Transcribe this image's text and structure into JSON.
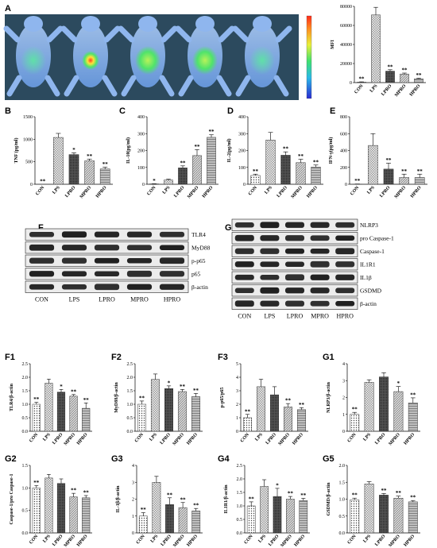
{
  "figure": {
    "panel_a": {
      "letter": "A",
      "colorbar_labels": [
        "",
        "",
        "",
        "",
        "",
        "",
        "",
        ""
      ],
      "colors": {
        "background": "#2c4a5e",
        "body": "#7bb1ee",
        "hot": "#ff3d1f",
        "warm": "#ffe23a",
        "mid": "#4fe36b"
      }
    },
    "western_f": {
      "letter": "F",
      "bands": [
        "TLR4",
        "MyD88",
        "p-p65",
        "p65",
        "β-actin"
      ],
      "lanes": [
        "CON",
        "LPS",
        "LPRO",
        "MPRO",
        "HPRO"
      ]
    },
    "western_g": {
      "letter": "G",
      "bands": [
        "NLRP3",
        "pro Caspase-1",
        "Caspase-1",
        "IL1R1",
        "IL1β",
        "GSDMD",
        "β-actin"
      ],
      "lanes": [
        "CON",
        "LPS",
        "LPRO",
        "MPRO",
        "HPRO"
      ]
    }
  },
  "chart_data": [
    {
      "id": "mfi",
      "type": "bar",
      "letter": "",
      "categories": [
        "CON",
        "LPS",
        "LPRO",
        "MPRO",
        "HPRO"
      ],
      "values": [
        500,
        71000,
        12000,
        9000,
        4000
      ],
      "errors": [
        300,
        8000,
        1500,
        1000,
        700
      ],
      "ylabel": "MFI",
      "ylim": [
        0,
        80000
      ],
      "yticks": [
        0,
        20000,
        40000,
        60000,
        80000
      ],
      "yticklabels": [
        "0",
        "20000",
        "40000",
        "60000",
        "80000"
      ],
      "stars": [
        "**",
        "",
        "**",
        "**",
        "**"
      ]
    },
    {
      "id": "B",
      "type": "bar",
      "letter": "B",
      "categories": [
        "CON",
        "LPS",
        "LPRO",
        "MPRO",
        "HPRO"
      ],
      "values": [
        0,
        1040,
        660,
        520,
        340
      ],
      "errors": [
        0,
        90,
        40,
        40,
        40
      ],
      "ylabel": "TNF (pg/ml)",
      "ylim": [
        0,
        1500
      ],
      "yticks": [
        0,
        500,
        1000,
        1500
      ],
      "yticklabels": [
        "0",
        "500",
        "1000",
        "1500"
      ],
      "stars": [
        "**",
        "",
        "*",
        "**",
        "**"
      ]
    },
    {
      "id": "C",
      "type": "bar",
      "letter": "C",
      "categories": [
        "CON",
        "LPS",
        "LPRO",
        "MPRO",
        "HPRO"
      ],
      "values": [
        2,
        25,
        97,
        170,
        278
      ],
      "errors": [
        1,
        5,
        12,
        35,
        15
      ],
      "ylabel": "IL-10(pg/ml)",
      "ylim": [
        0,
        400
      ],
      "yticks": [
        0,
        100,
        200,
        300,
        400
      ],
      "yticklabels": [
        "0",
        "100",
        "200",
        "300",
        "400"
      ],
      "stars": [
        "*",
        "",
        "**",
        "**",
        "**"
      ]
    },
    {
      "id": "D",
      "type": "bar",
      "letter": "D",
      "categories": [
        "CON",
        "LPS",
        "LPRO",
        "MPRO",
        "HPRO"
      ],
      "values": [
        52,
        262,
        172,
        128,
        102
      ],
      "errors": [
        8,
        45,
        20,
        20,
        12
      ],
      "ylabel": "IL-2(pg/ml)",
      "ylim": [
        0,
        400
      ],
      "yticks": [
        0,
        100,
        200,
        300,
        400
      ],
      "yticklabels": [
        "0",
        "100",
        "200",
        "300",
        "400"
      ],
      "stars": [
        "**",
        "",
        "**",
        "**",
        "**"
      ]
    },
    {
      "id": "E",
      "type": "bar",
      "letter": "E",
      "categories": [
        "CON",
        "LPS",
        "LPRO",
        "MPRO",
        "HPRO"
      ],
      "values": [
        2,
        460,
        180,
        80,
        80
      ],
      "errors": [
        1,
        140,
        70,
        40,
        40
      ],
      "ylabel": "IFN-γ(pg/ml)",
      "ylim": [
        0,
        800
      ],
      "yticks": [
        0,
        200,
        400,
        600,
        800
      ],
      "yticklabels": [
        "0",
        "200",
        "400",
        "600",
        "800"
      ],
      "stars": [
        "**",
        "",
        "**",
        "**",
        "**"
      ]
    },
    {
      "id": "F1",
      "type": "bar",
      "letter": "F1",
      "categories": [
        "CON",
        "LPS",
        "LPRO",
        "MPRO",
        "HPRO"
      ],
      "values": [
        1.0,
        1.78,
        1.45,
        1.3,
        0.85
      ],
      "errors": [
        0.07,
        0.15,
        0.1,
        0.06,
        0.2
      ],
      "ylabel": "TLR4/β-actin",
      "ylim": [
        0,
        2.5
      ],
      "yticks": [
        0,
        0.5,
        1.0,
        1.5,
        2.0,
        2.5
      ],
      "yticklabels": [
        "0.0",
        "0.5",
        "1.0",
        "1.5",
        "2.0",
        "2.5"
      ],
      "stars": [
        "**",
        "",
        "*",
        "**",
        "**"
      ]
    },
    {
      "id": "F2",
      "type": "bar",
      "letter": "F2",
      "categories": [
        "CON",
        "LPS",
        "LPRO",
        "MPRO",
        "HPRO"
      ],
      "values": [
        1.0,
        1.92,
        1.58,
        1.47,
        1.28
      ],
      "errors": [
        0.12,
        0.2,
        0.1,
        0.08,
        0.12
      ],
      "ylabel": "MyD88/β-actin",
      "ylim": [
        0,
        2.5
      ],
      "yticks": [
        0,
        0.5,
        1.0,
        1.5,
        2.0,
        2.5
      ],
      "yticklabels": [
        "0.0",
        "0.5",
        "1.0",
        "1.5",
        "2.0",
        "2.5"
      ],
      "stars": [
        "**",
        "",
        "*",
        "**",
        "**"
      ]
    },
    {
      "id": "F3",
      "type": "bar",
      "letter": "F3",
      "categories": [
        "CON",
        "LPS",
        "LPRO",
        "MPRO",
        "HPRO"
      ],
      "values": [
        1.0,
        3.3,
        2.7,
        1.8,
        1.6
      ],
      "errors": [
        0.25,
        0.55,
        0.6,
        0.25,
        0.15
      ],
      "ylabel": "p-p65/p65",
      "ylim": [
        0,
        5
      ],
      "yticks": [
        0,
        1,
        2,
        3,
        4,
        5
      ],
      "yticklabels": [
        "0",
        "1",
        "2",
        "3",
        "4",
        "5"
      ],
      "stars": [
        "**",
        "",
        "",
        "**",
        "**"
      ]
    },
    {
      "id": "G1",
      "type": "bar",
      "letter": "G1",
      "categories": [
        "CON",
        "LPS",
        "LPRO",
        "MPRO",
        "HPRO"
      ],
      "values": [
        1.0,
        2.9,
        3.22,
        2.35,
        1.68
      ],
      "errors": [
        0.12,
        0.15,
        0.25,
        0.3,
        0.3
      ],
      "ylabel": "NLRP3/β-actin",
      "ylim": [
        0,
        4
      ],
      "yticks": [
        0,
        1,
        2,
        3,
        4
      ],
      "yticklabels": [
        "0",
        "1",
        "2",
        "3",
        "4"
      ],
      "stars": [
        "**",
        "",
        "",
        "*",
        "**"
      ]
    },
    {
      "id": "G2",
      "type": "bar",
      "letter": "G2",
      "categories": [
        "CON",
        "LPS",
        "LPRO",
        "MPRO",
        "HPRO"
      ],
      "values": [
        1.0,
        1.22,
        1.1,
        0.8,
        0.78
      ],
      "errors": [
        0.05,
        0.08,
        0.1,
        0.08,
        0.05
      ],
      "ylabel": "Caspase-1/pro Caspase-1",
      "ylim": [
        0,
        1.5
      ],
      "yticks": [
        0,
        0.5,
        1.0,
        1.5
      ],
      "yticklabels": [
        "0.0",
        "0.5",
        "1.0",
        "1.5"
      ],
      "stars": [
        "**",
        "",
        "",
        "**",
        "**"
      ]
    },
    {
      "id": "G3",
      "type": "bar",
      "letter": "G3",
      "categories": [
        "CON",
        "LPS",
        "LPRO",
        "MPRO",
        "HPRO"
      ],
      "values": [
        1.0,
        3.0,
        1.68,
        1.5,
        1.3
      ],
      "errors": [
        0.2,
        0.35,
        0.4,
        0.3,
        0.15
      ],
      "ylabel": "IL-1β/β-actin",
      "ylim": [
        0,
        4
      ],
      "yticks": [
        0,
        1,
        2,
        3,
        4
      ],
      "yticklabels": [
        "0",
        "1",
        "2",
        "3",
        "4"
      ],
      "stars": [
        "**",
        "",
        "**",
        "**",
        "**"
      ]
    },
    {
      "id": "G4",
      "type": "bar",
      "letter": "G4",
      "categories": [
        "CON",
        "LPS",
        "LPRO",
        "MPRO",
        "HPRO"
      ],
      "values": [
        1.0,
        1.72,
        1.35,
        1.25,
        1.2
      ],
      "errors": [
        0.15,
        0.25,
        0.3,
        0.1,
        0.08
      ],
      "ylabel": "IL1R1/β-actin",
      "ylim": [
        0,
        2.5
      ],
      "yticks": [
        0,
        0.5,
        1.0,
        1.5,
        2.0,
        2.5
      ],
      "yticklabels": [
        "0.0",
        "0.5",
        "1.0",
        "1.5",
        "2.0",
        "2.5"
      ],
      "stars": [
        "**",
        "",
        "*",
        "**",
        "**"
      ]
    },
    {
      "id": "G5",
      "type": "bar",
      "letter": "G5",
      "categories": [
        "CON",
        "LPS",
        "LPRO",
        "MPRO",
        "HPRO"
      ],
      "values": [
        0.98,
        1.45,
        1.12,
        1.03,
        0.92
      ],
      "errors": [
        0.05,
        0.07,
        0.05,
        0.06,
        0.04
      ],
      "ylabel": "GSDMD/β-actin",
      "ylim": [
        0,
        2.0
      ],
      "yticks": [
        0,
        0.5,
        1.0,
        1.5,
        2.0
      ],
      "yticklabels": [
        "0.0",
        "0.5",
        "1.0",
        "1.5",
        "2.0"
      ],
      "stars": [
        "**",
        "",
        "**",
        "**",
        "**"
      ]
    }
  ]
}
